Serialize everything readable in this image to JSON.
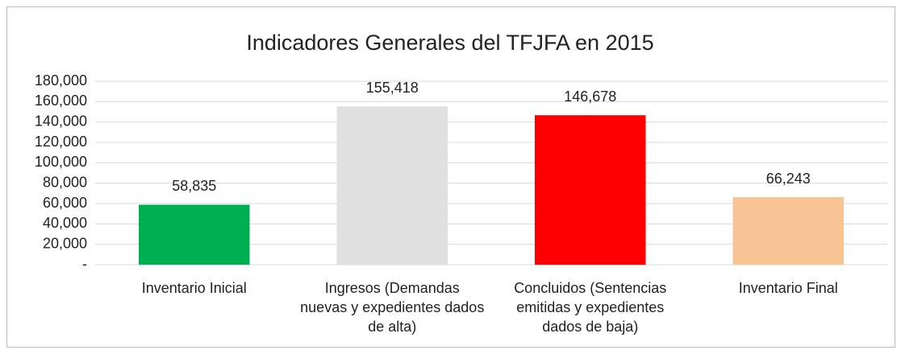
{
  "chart_data": {
    "type": "bar",
    "title": "Indicadores Generales del TFJFA en 2015",
    "categories": [
      "Inventario Inicial",
      "Ingresos (Demandas nuevas y expedientes dados de alta)",
      "Concluidos (Sentencias emitidas y expedientes dados de baja)",
      "Inventario Final"
    ],
    "values": [
      58835,
      155418,
      146678,
      66243
    ],
    "value_labels": [
      "58,835",
      "155,418",
      "146,678",
      "66,243"
    ],
    "colors": [
      "#00b050",
      "#e0e0e0",
      "#ff0000",
      "#f8c494"
    ],
    "ylim": [
      0,
      180000
    ],
    "yticks": [
      {
        "value": 0,
        "label": "-"
      },
      {
        "value": 20000,
        "label": "20,000"
      },
      {
        "value": 40000,
        "label": "40,000"
      },
      {
        "value": 60000,
        "label": "60,000"
      },
      {
        "value": 80000,
        "label": "80,000"
      },
      {
        "value": 100000,
        "label": "100,000"
      },
      {
        "value": 120000,
        "label": "120,000"
      },
      {
        "value": 140000,
        "label": "140,000"
      },
      {
        "value": 160000,
        "label": "160,000"
      },
      {
        "value": 180000,
        "label": "180,000"
      }
    ],
    "grid": true
  }
}
